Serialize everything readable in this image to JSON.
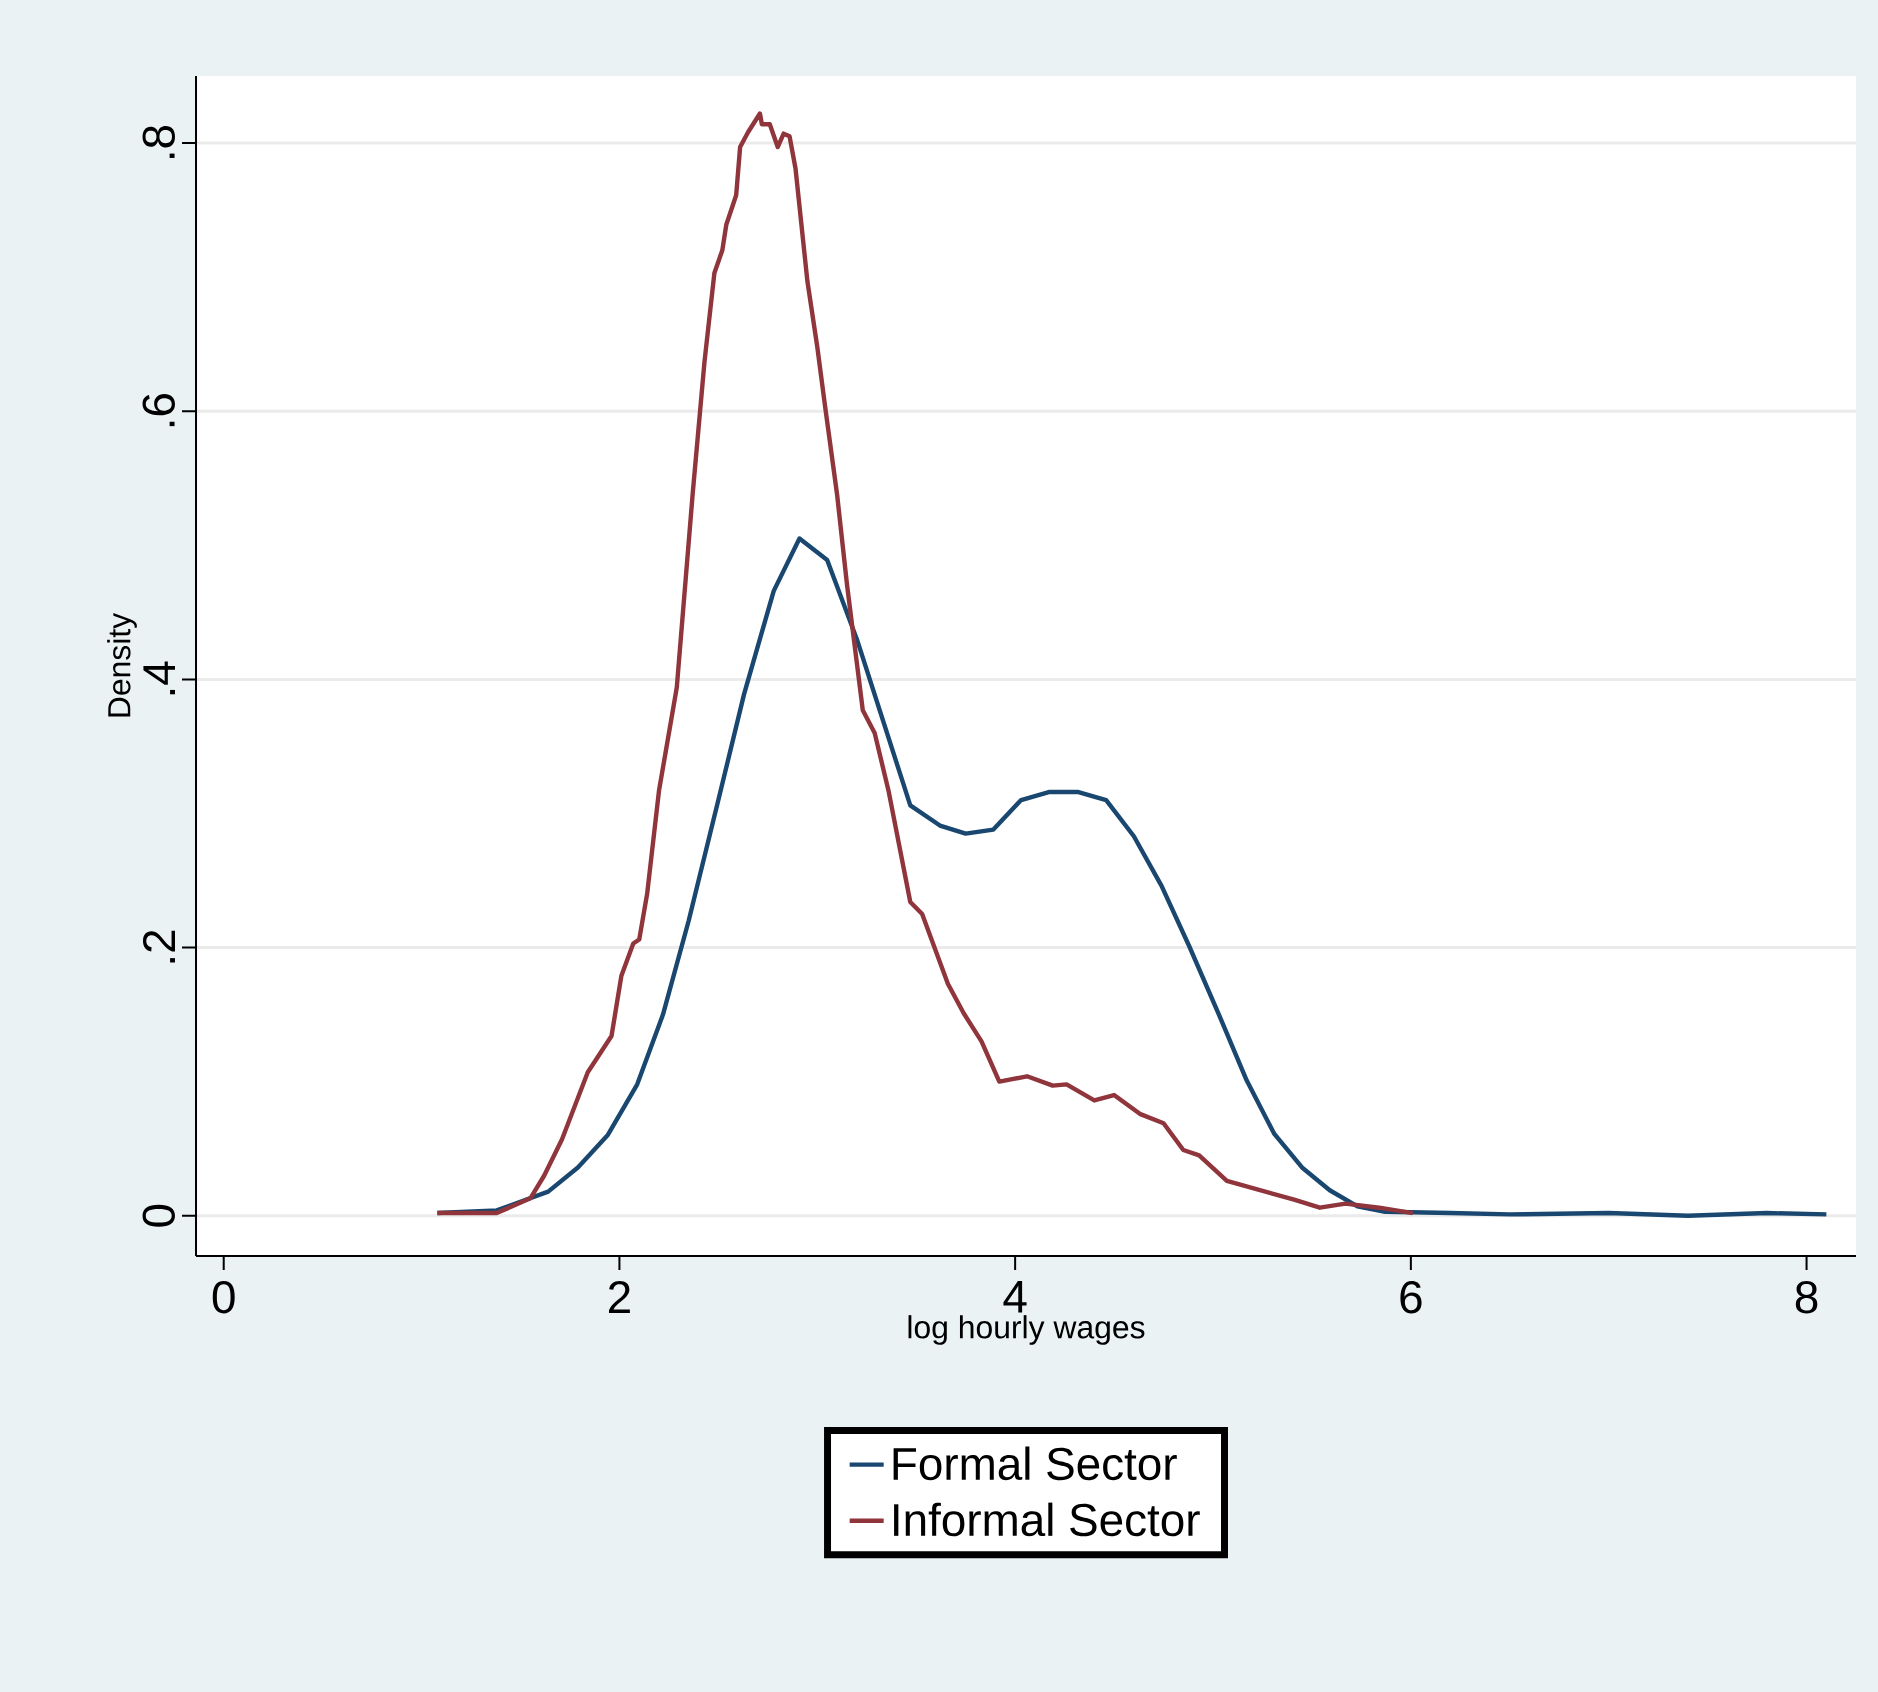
{
  "chart_data": {
    "type": "line",
    "xlabel": "log hourly wages",
    "ylabel": "Density",
    "xlim": [
      -0.14,
      8.25
    ],
    "ylim": [
      -0.03,
      0.85
    ],
    "xticks": [
      0,
      2,
      4,
      6,
      8
    ],
    "yticks": [
      0,
      {
        "value": 0.2,
        "label": ".2"
      },
      {
        "value": 0.4,
        "label": ".4"
      },
      {
        "value": 0.6,
        "label": ".6"
      },
      {
        "value": 0.8,
        "label": ".8"
      }
    ],
    "grid": "y",
    "legend": "bottom",
    "series": [
      {
        "name": "Formal Sector",
        "color": "#1a476f",
        "x": [
          1.08,
          1.38,
          1.64,
          1.79,
          1.94,
          2.09,
          2.22,
          2.35,
          2.5,
          2.63,
          2.78,
          2.91,
          3.05,
          3.2,
          3.47,
          3.62,
          3.75,
          3.89,
          4.03,
          4.17,
          4.32,
          4.46,
          4.6,
          4.74,
          4.88,
          5.03,
          5.17,
          5.31,
          5.45,
          5.59,
          5.73,
          5.87,
          6.2,
          6.5,
          7.0,
          7.4,
          7.8,
          8.1
        ],
        "values": [
          0.002,
          0.004,
          0.018,
          0.036,
          0.06,
          0.098,
          0.15,
          0.22,
          0.31,
          0.389,
          0.466,
          0.505,
          0.489,
          0.43,
          0.306,
          0.291,
          0.285,
          0.288,
          0.31,
          0.316,
          0.316,
          0.31,
          0.283,
          0.246,
          0.201,
          0.15,
          0.101,
          0.061,
          0.036,
          0.019,
          0.007,
          0.003,
          0.002,
          0.001,
          0.002,
          0.0,
          0.002,
          0.001
        ]
      },
      {
        "name": "Informal Sector",
        "color": "#90353b",
        "x": [
          1.08,
          1.38,
          1.55,
          1.62,
          1.71,
          1.84,
          1.96,
          2.01,
          2.07,
          2.1,
          2.14,
          2.2,
          2.29,
          2.37,
          2.43,
          2.48,
          2.52,
          2.54,
          2.59,
          2.61,
          2.65,
          2.71,
          2.72,
          2.76,
          2.8,
          2.83,
          2.86,
          2.89,
          2.95,
          3.0,
          3.04,
          3.1,
          3.15,
          3.23,
          3.29,
          3.36,
          3.47,
          3.53,
          3.66,
          3.74,
          3.83,
          3.92,
          4.06,
          4.19,
          4.26,
          4.4,
          4.5,
          4.63,
          4.75,
          4.85,
          4.93,
          5.07,
          5.24,
          5.41,
          5.54,
          5.67,
          5.84,
          6.01
        ],
        "values": [
          0.002,
          0.002,
          0.013,
          0.03,
          0.057,
          0.107,
          0.134,
          0.179,
          0.203,
          0.206,
          0.24,
          0.317,
          0.394,
          0.538,
          0.637,
          0.703,
          0.72,
          0.739,
          0.761,
          0.797,
          0.808,
          0.822,
          0.814,
          0.814,
          0.797,
          0.807,
          0.805,
          0.781,
          0.697,
          0.648,
          0.603,
          0.538,
          0.471,
          0.377,
          0.36,
          0.317,
          0.234,
          0.225,
          0.173,
          0.151,
          0.13,
          0.1,
          0.104,
          0.097,
          0.098,
          0.086,
          0.09,
          0.076,
          0.069,
          0.049,
          0.045,
          0.026,
          0.019,
          0.012,
          0.006,
          0.009,
          0.006,
          0.002
        ]
      }
    ]
  }
}
